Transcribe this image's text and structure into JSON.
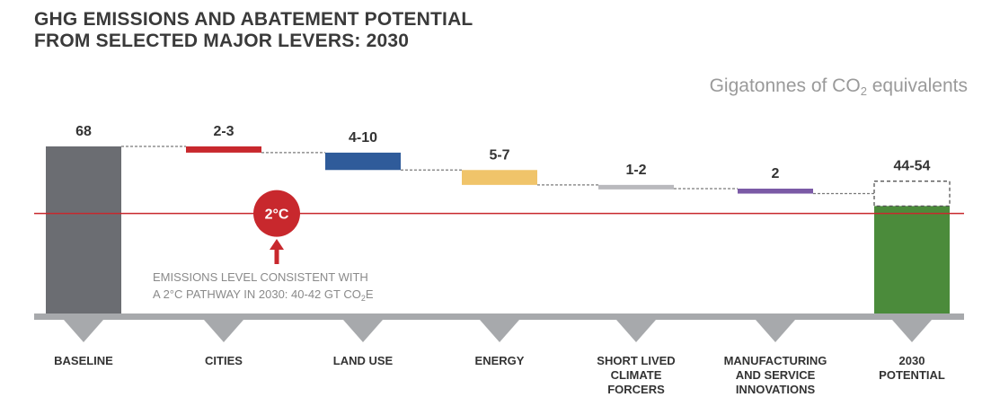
{
  "title_line1": "GHG EMISSIONS AND ABATEMENT POTENTIAL",
  "title_line2": "FROM SELECTED MAJOR LEVERS: 2030",
  "unit_label_pre": "Gigatonnes of CO",
  "unit_label_sub": "2",
  "unit_label_post": " equivalents",
  "threshold_badge": "2°C",
  "threshold_note": {
    "line1": "EMISSIONS LEVEL CONSISTENT WITH",
    "line2_pre": "A 2°C PATHWAY IN 2030: 40-42 GT CO",
    "line2_sub": "2",
    "line2_post": "E"
  },
  "colors": {
    "baseline": "#6b6d72",
    "cities": "#c8282d",
    "land_use": "#2f5b9a",
    "energy": "#f0c46a",
    "slcf": "#b9b9bd",
    "manufacturing": "#7b5aa6",
    "potential": "#4b8b3b",
    "threshold": "#c8282d",
    "axis": "#a7a9ac"
  },
  "chart_data": {
    "type": "waterfall",
    "title": "GHG EMISSIONS AND ABATEMENT POTENTIAL FROM SELECTED MAJOR LEVERS: 2030",
    "ylabel": "Gigatonnes of CO2 equivalents",
    "threshold": {
      "value": 41,
      "label": "2°C"
    },
    "bars": [
      {
        "category": "BASELINE",
        "label_lines": [
          "BASELINE"
        ],
        "value_label": "68",
        "start": 0,
        "end": 68,
        "kind": "total",
        "color_key": "baseline"
      },
      {
        "category": "CITIES",
        "label_lines": [
          "CITIES"
        ],
        "value_label": "2-3",
        "start": 68,
        "end": 65.5,
        "kind": "reduction",
        "color_key": "cities"
      },
      {
        "category": "LAND USE",
        "label_lines": [
          "LAND USE"
        ],
        "value_label": "4-10",
        "start": 65.5,
        "end": 58.5,
        "kind": "reduction",
        "color_key": "land_use"
      },
      {
        "category": "ENERGY",
        "label_lines": [
          "ENERGY"
        ],
        "value_label": "5-7",
        "start": 58.5,
        "end": 52.5,
        "kind": "reduction",
        "color_key": "energy"
      },
      {
        "category": "SHORT LIVED CLIMATE FORCERS",
        "label_lines": [
          "SHORT LIVED",
          "CLIMATE",
          "FORCERS"
        ],
        "value_label": "1-2",
        "start": 52.5,
        "end": 51.0,
        "kind": "reduction",
        "color_key": "slcf"
      },
      {
        "category": "MANUFACTURING AND SERVICE INNOVATIONS",
        "label_lines": [
          "MANUFACTURING",
          "AND SERVICE",
          "INNOVATIONS"
        ],
        "value_label": "2",
        "start": 51.0,
        "end": 49.0,
        "kind": "reduction",
        "color_key": "manufacturing"
      },
      {
        "category": "2030 POTENTIAL",
        "label_lines": [
          "2030",
          "POTENTIAL"
        ],
        "value_label": "44-54",
        "start": 0,
        "end": 44,
        "end_max": 54,
        "kind": "total_range",
        "color_key": "potential"
      }
    ]
  }
}
